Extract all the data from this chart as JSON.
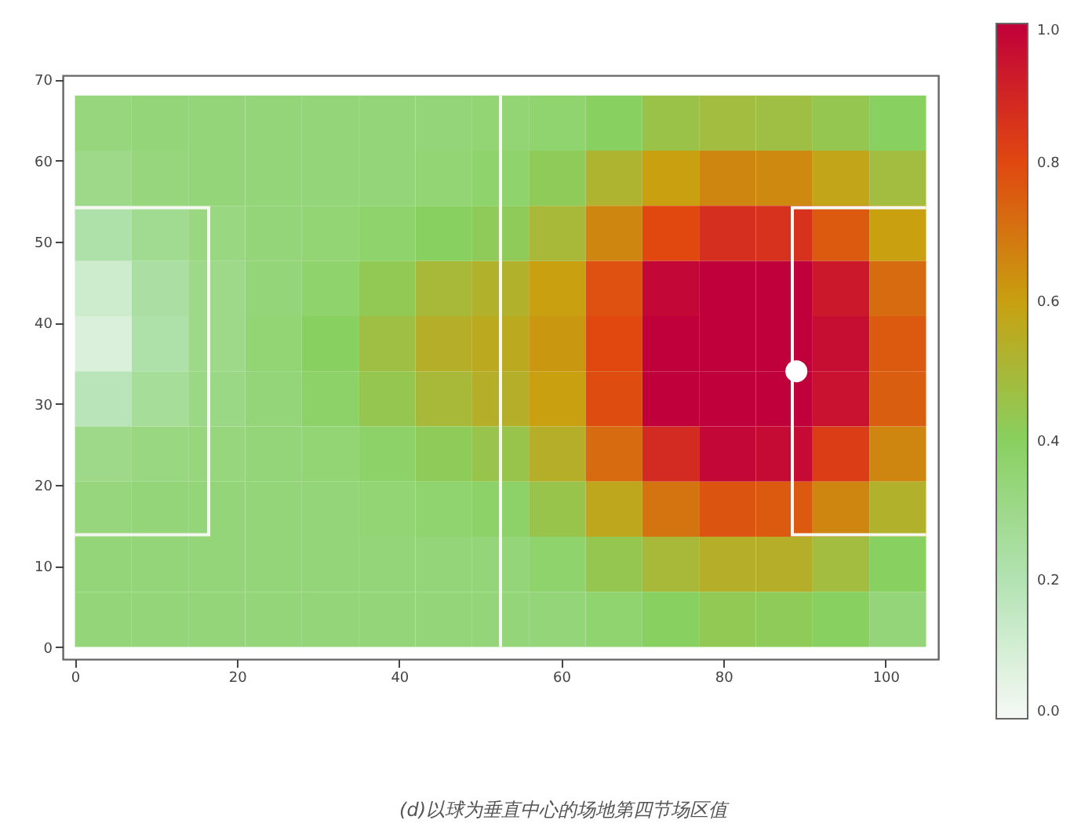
{
  "chart_data": {
    "type": "heatmap",
    "annotations": [
      "(d)以球为垂直中心的场地第四节场区值"
    ],
    "x": [
      3.5,
      10.5,
      17.5,
      24.5,
      31.5,
      38.5,
      45.5,
      52.5,
      59.5,
      66.5,
      73.5,
      80.5,
      87.5,
      94.5,
      101.5
    ],
    "y": [
      64.6,
      57.8,
      51,
      44.2,
      37.4,
      30.6,
      23.8,
      17,
      10.2,
      3.4
    ],
    "cells": [
      [
        0.33,
        0.34,
        0.34,
        0.34,
        0.34,
        0.34,
        0.34,
        0.35,
        0.36,
        0.4,
        0.46,
        0.48,
        0.47,
        0.44,
        0.4
      ],
      [
        0.3,
        0.33,
        0.34,
        0.34,
        0.34,
        0.34,
        0.35,
        0.37,
        0.42,
        0.52,
        0.6,
        0.66,
        0.65,
        0.58,
        0.48
      ],
      [
        0.22,
        0.28,
        0.32,
        0.34,
        0.35,
        0.37,
        0.4,
        0.42,
        0.5,
        0.66,
        0.8,
        0.87,
        0.86,
        0.76,
        0.6
      ],
      [
        0.12,
        0.24,
        0.3,
        0.34,
        0.37,
        0.43,
        0.5,
        0.53,
        0.6,
        0.78,
        0.98,
        1.0,
        1.0,
        0.93,
        0.72
      ],
      [
        0.08,
        0.22,
        0.3,
        0.35,
        0.4,
        0.47,
        0.54,
        0.56,
        0.62,
        0.8,
        1.0,
        1.0,
        1.0,
        0.96,
        0.76
      ],
      [
        0.18,
        0.26,
        0.31,
        0.34,
        0.38,
        0.44,
        0.5,
        0.54,
        0.6,
        0.79,
        1.0,
        1.0,
        1.0,
        0.95,
        0.75
      ],
      [
        0.3,
        0.32,
        0.33,
        0.34,
        0.35,
        0.38,
        0.42,
        0.45,
        0.54,
        0.72,
        0.88,
        0.98,
        0.97,
        0.83,
        0.66
      ],
      [
        0.33,
        0.34,
        0.34,
        0.34,
        0.34,
        0.35,
        0.36,
        0.38,
        0.45,
        0.57,
        0.7,
        0.77,
        0.76,
        0.66,
        0.53
      ],
      [
        0.34,
        0.34,
        0.34,
        0.34,
        0.34,
        0.34,
        0.34,
        0.34,
        0.37,
        0.44,
        0.5,
        0.54,
        0.54,
        0.48,
        0.4
      ],
      [
        0.34,
        0.34,
        0.34,
        0.34,
        0.34,
        0.34,
        0.34,
        0.34,
        0.34,
        0.36,
        0.4,
        0.43,
        0.42,
        0.4,
        0.34
      ]
    ],
    "xlim": [
      -1.5,
      106.5
    ],
    "xticks": [
      0,
      20,
      40,
      60,
      80,
      100
    ],
    "ylim": [
      -1.5,
      70.5
    ],
    "yticks": [
      0,
      10,
      20,
      30,
      40,
      50,
      60,
      70
    ],
    "ref_lines": [
      {
        "axis": "x",
        "value": 52.5,
        "color": "#f4f8f0"
      }
    ],
    "clim": [
      0,
      1
    ],
    "cticks": [
      {
        "value": 0,
        "label": "0.0"
      },
      {
        "value": 0.2,
        "label": "0.2"
      },
      {
        "value": 0.4,
        "label": "0.4"
      },
      {
        "value": 0.6,
        "label": "0.6"
      },
      {
        "value": 0.8,
        "label": "0.8"
      },
      {
        "value": 1,
        "label": "1.0"
      }
    ]
  }
}
